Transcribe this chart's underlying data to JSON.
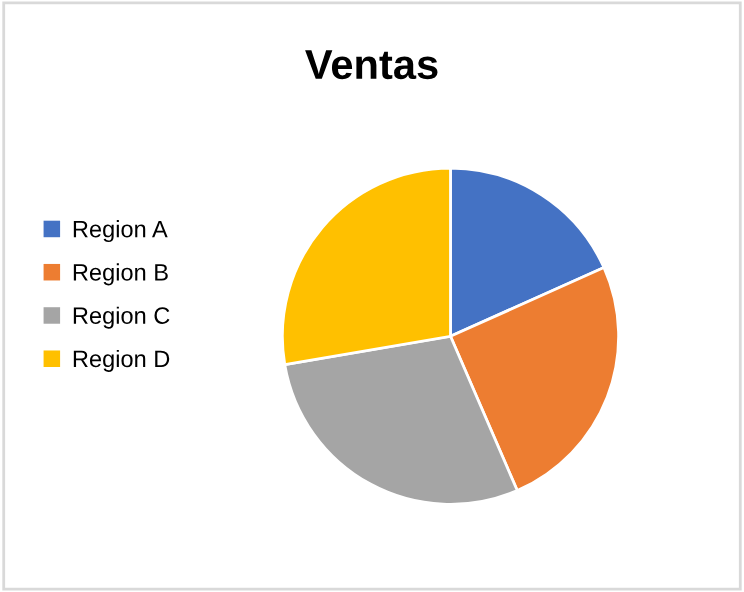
{
  "chart_data": {
    "type": "pie",
    "title": "Ventas",
    "categories": [
      "Region A",
      "Region B",
      "Region C",
      "Region D"
    ],
    "values": [
      18.3,
      25.2,
      28.8,
      27.7
    ],
    "colors": [
      "#4472c4",
      "#ed7d31",
      "#a5a5a5",
      "#ffc000"
    ],
    "legend": "left"
  }
}
